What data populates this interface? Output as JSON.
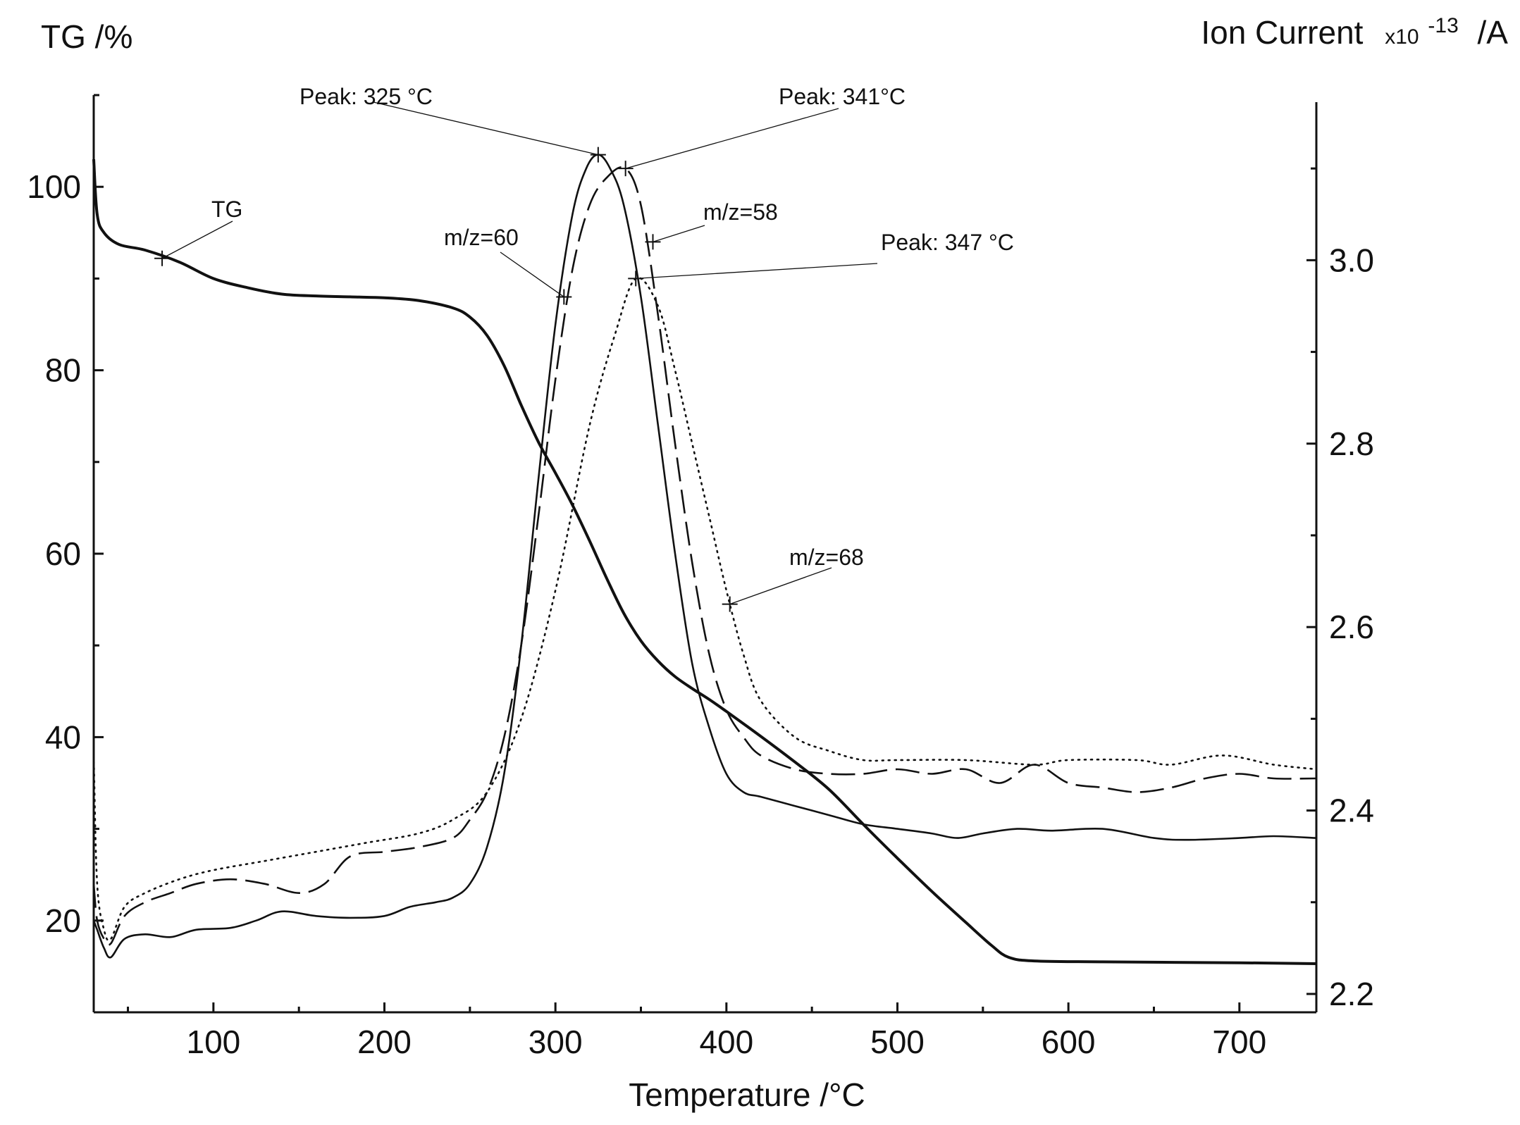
{
  "chart_data": {
    "type": "line",
    "xlabel": "Temperature  /°C",
    "ylabel_left": "TG /%",
    "ylabel_right_main": "Ion Current",
    "ylabel_right_mult": "x10",
    "ylabel_right_exp": "-13",
    "ylabel_right_unit": "/A",
    "xlim": [
      30,
      745
    ],
    "ylim_left": [
      10,
      110
    ],
    "ylim_right": [
      2.18,
      3.18
    ],
    "xticks": [
      100,
      200,
      300,
      400,
      500,
      600,
      700
    ],
    "xtick_labels": [
      "100",
      "200",
      "300",
      "400",
      "500",
      "600",
      "700"
    ],
    "yticks_left": [
      20,
      40,
      60,
      80,
      100
    ],
    "ytick_labels_left": [
      "20",
      "40",
      "60",
      "80",
      "100"
    ],
    "yticks_right": [
      2.2,
      2.4,
      2.6,
      2.8,
      3.0
    ],
    "ytick_labels_right": [
      "2.2",
      "2.4",
      "2.6",
      "2.8",
      "3.0"
    ],
    "series": [
      {
        "name": "TG",
        "axis": "left",
        "style": "solid-thick",
        "points": [
          [
            30,
            103
          ],
          [
            32,
            97
          ],
          [
            36,
            95
          ],
          [
            45,
            93.7
          ],
          [
            60,
            93.1
          ],
          [
            80,
            91.8
          ],
          [
            100,
            90.0
          ],
          [
            120,
            89.0
          ],
          [
            140,
            88.3
          ],
          [
            160,
            88.1
          ],
          [
            180,
            88.0
          ],
          [
            200,
            87.9
          ],
          [
            220,
            87.6
          ],
          [
            240,
            86.8
          ],
          [
            250,
            85.8
          ],
          [
            260,
            83.8
          ],
          [
            270,
            80.5
          ],
          [
            280,
            76.2
          ],
          [
            290,
            72.2
          ],
          [
            300,
            68.8
          ],
          [
            310,
            65.3
          ],
          [
            320,
            61.4
          ],
          [
            330,
            57.3
          ],
          [
            340,
            53.5
          ],
          [
            350,
            50.5
          ],
          [
            360,
            48.3
          ],
          [
            370,
            46.6
          ],
          [
            380,
            45.3
          ],
          [
            390,
            44.1
          ],
          [
            400,
            42.8
          ],
          [
            420,
            40.1
          ],
          [
            440,
            37.3
          ],
          [
            460,
            34.3
          ],
          [
            480,
            30.5
          ],
          [
            500,
            26.8
          ],
          [
            520,
            23.2
          ],
          [
            540,
            19.8
          ],
          [
            555,
            17.3
          ],
          [
            565,
            16.0
          ],
          [
            580,
            15.6
          ],
          [
            620,
            15.5
          ],
          [
            700,
            15.4
          ],
          [
            745,
            15.3
          ]
        ]
      },
      {
        "name": "m/z=60",
        "axis": "right",
        "style": "solid",
        "points": [
          [
            30,
            2.28
          ],
          [
            32,
            2.27
          ],
          [
            36,
            2.25
          ],
          [
            40,
            2.24
          ],
          [
            48,
            2.26
          ],
          [
            60,
            2.265
          ],
          [
            75,
            2.262
          ],
          [
            90,
            2.27
          ],
          [
            110,
            2.272
          ],
          [
            125,
            2.28
          ],
          [
            140,
            2.29
          ],
          [
            160,
            2.285
          ],
          [
            180,
            2.283
          ],
          [
            200,
            2.285
          ],
          [
            215,
            2.295
          ],
          [
            230,
            2.3
          ],
          [
            240,
            2.305
          ],
          [
            250,
            2.32
          ],
          [
            260,
            2.36
          ],
          [
            270,
            2.44
          ],
          [
            280,
            2.58
          ],
          [
            290,
            2.76
          ],
          [
            300,
            2.93
          ],
          [
            310,
            3.05
          ],
          [
            318,
            3.1
          ],
          [
            325,
            3.115
          ],
          [
            332,
            3.1
          ],
          [
            340,
            3.06
          ],
          [
            350,
            2.96
          ],
          [
            360,
            2.82
          ],
          [
            370,
            2.68
          ],
          [
            380,
            2.56
          ],
          [
            390,
            2.49
          ],
          [
            400,
            2.44
          ],
          [
            410,
            2.42
          ],
          [
            420,
            2.415
          ],
          [
            440,
            2.405
          ],
          [
            460,
            2.395
          ],
          [
            480,
            2.385
          ],
          [
            500,
            2.38
          ],
          [
            520,
            2.375
          ],
          [
            535,
            2.37
          ],
          [
            550,
            2.375
          ],
          [
            570,
            2.38
          ],
          [
            590,
            2.378
          ],
          [
            620,
            2.38
          ],
          [
            650,
            2.37
          ],
          [
            670,
            2.368
          ],
          [
            700,
            2.37
          ],
          [
            720,
            2.372
          ],
          [
            745,
            2.37
          ]
        ]
      },
      {
        "name": "m/z=58",
        "axis": "right",
        "style": "dashed",
        "points": [
          [
            30,
            2.32
          ],
          [
            32,
            2.28
          ],
          [
            36,
            2.26
          ],
          [
            40,
            2.255
          ],
          [
            48,
            2.285
          ],
          [
            60,
            2.3
          ],
          [
            75,
            2.31
          ],
          [
            90,
            2.32
          ],
          [
            110,
            2.325
          ],
          [
            130,
            2.32
          ],
          [
            150,
            2.31
          ],
          [
            165,
            2.32
          ],
          [
            180,
            2.35
          ],
          [
            200,
            2.355
          ],
          [
            220,
            2.36
          ],
          [
            240,
            2.37
          ],
          [
            250,
            2.39
          ],
          [
            260,
            2.42
          ],
          [
            270,
            2.48
          ],
          [
            280,
            2.58
          ],
          [
            290,
            2.72
          ],
          [
            300,
            2.87
          ],
          [
            310,
            2.99
          ],
          [
            320,
            3.06
          ],
          [
            330,
            3.09
          ],
          [
            341,
            3.1
          ],
          [
            350,
            3.06
          ],
          [
            360,
            2.94
          ],
          [
            370,
            2.8
          ],
          [
            380,
            2.67
          ],
          [
            390,
            2.57
          ],
          [
            400,
            2.51
          ],
          [
            410,
            2.48
          ],
          [
            420,
            2.46
          ],
          [
            440,
            2.445
          ],
          [
            460,
            2.44
          ],
          [
            480,
            2.44
          ],
          [
            500,
            2.445
          ],
          [
            520,
            2.44
          ],
          [
            540,
            2.445
          ],
          [
            560,
            2.43
          ],
          [
            580,
            2.45
          ],
          [
            600,
            2.43
          ],
          [
            620,
            2.425
          ],
          [
            640,
            2.42
          ],
          [
            660,
            2.425
          ],
          [
            680,
            2.435
          ],
          [
            700,
            2.44
          ],
          [
            720,
            2.435
          ],
          [
            745,
            2.435
          ]
        ]
      },
      {
        "name": "m/z=68",
        "axis": "right",
        "style": "dotted",
        "points": [
          [
            30,
            2.46
          ],
          [
            32,
            2.32
          ],
          [
            36,
            2.27
          ],
          [
            40,
            2.26
          ],
          [
            48,
            2.295
          ],
          [
            60,
            2.31
          ],
          [
            80,
            2.325
          ],
          [
            100,
            2.335
          ],
          [
            130,
            2.345
          ],
          [
            160,
            2.355
          ],
          [
            190,
            2.365
          ],
          [
            220,
            2.375
          ],
          [
            240,
            2.39
          ],
          [
            260,
            2.42
          ],
          [
            280,
            2.5
          ],
          [
            300,
            2.64
          ],
          [
            320,
            2.82
          ],
          [
            335,
            2.92
          ],
          [
            347,
            2.98
          ],
          [
            360,
            2.95
          ],
          [
            370,
            2.88
          ],
          [
            380,
            2.8
          ],
          [
            390,
            2.72
          ],
          [
            400,
            2.64
          ],
          [
            410,
            2.57
          ],
          [
            420,
            2.52
          ],
          [
            440,
            2.48
          ],
          [
            460,
            2.465
          ],
          [
            480,
            2.455
          ],
          [
            500,
            2.455
          ],
          [
            540,
            2.455
          ],
          [
            580,
            2.45
          ],
          [
            600,
            2.455
          ],
          [
            640,
            2.455
          ],
          [
            660,
            2.45
          ],
          [
            690,
            2.46
          ],
          [
            720,
            2.45
          ],
          [
            745,
            2.445
          ]
        ]
      }
    ],
    "annotations": [
      {
        "text": "Peak:  325 °C",
        "x": 325,
        "y": 3.115,
        "axis": "right"
      },
      {
        "text": "Peak:  341°C",
        "x": 341,
        "y": 3.1,
        "axis": "right"
      },
      {
        "text": "Peak:  347 °C",
        "x": 347,
        "y": 2.98,
        "axis": "right"
      },
      {
        "text": "TG",
        "x": 70,
        "y": 92.2,
        "axis": "left"
      },
      {
        "text": "m/z=60",
        "x": 305,
        "y": 2.96,
        "axis": "right"
      },
      {
        "text": "m/z=58",
        "x": 357,
        "y": 3.02,
        "axis": "right"
      },
      {
        "text": "m/z=68",
        "x": 402,
        "y": 2.625,
        "axis": "right"
      }
    ]
  }
}
